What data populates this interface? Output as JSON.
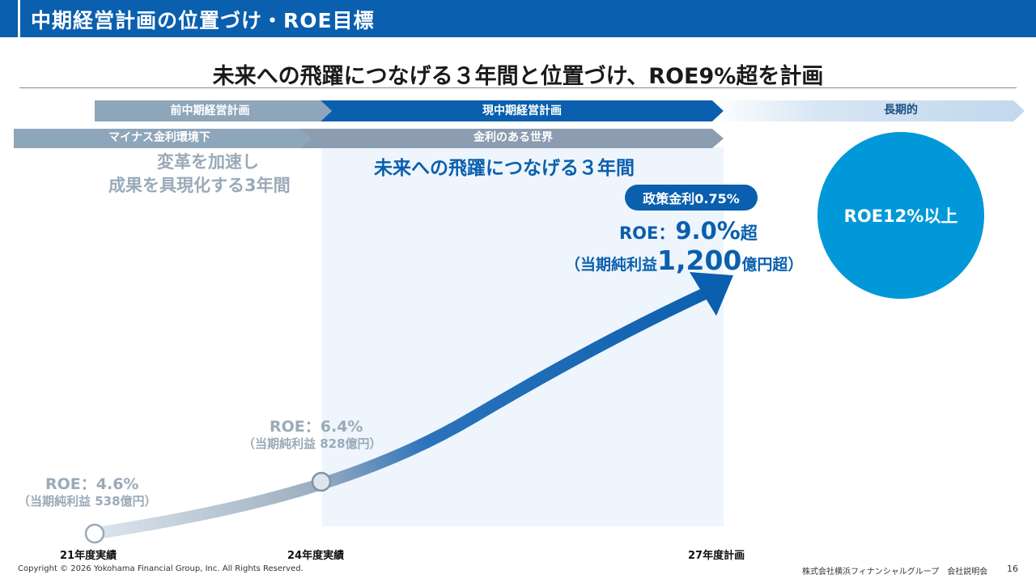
{
  "header": {
    "title": "中期経営計画の位置づけ・ROE目標"
  },
  "subtitle": "未来への飛躍につなげる３年間と位置づけ、ROE9%超を計画",
  "bands": {
    "prev_plan": "前中期経営計画",
    "current_plan": "現中期経営計画",
    "long_term": "長期的",
    "negative_rate": "マイナス金利環境下",
    "with_rate": "金利のある世界"
  },
  "phrases": {
    "prev_line1": "変革を加速し",
    "prev_line2": "成果を具現化する3年間",
    "current": "未来への飛躍につなげる３年間"
  },
  "points": {
    "fy21": {
      "roe": "ROE：4.6%",
      "profit": "（当期純利益 538億円）",
      "axis": "21年度実績"
    },
    "fy24": {
      "roe": "ROE：6.4%",
      "profit": "（当期純利益 828億円）",
      "axis": "24年度実績"
    },
    "fy27": {
      "policy_rate": "政策金利0.75%",
      "roe_prefix": "ROE：",
      "roe_value": "9.0%",
      "roe_suffix": "超",
      "profit_prefix": "（当期純利益",
      "profit_value": "1,200",
      "profit_suffix": "億円超）",
      "axis": "27年度計画"
    },
    "long_term_target": "ROE12%以上"
  },
  "footer": {
    "copyright": "Copyright © 2026 Yokohama Financial Group, Inc. All Rights Reserved.",
    "company": "株式会社横浜フィナンシャルグループ　会社説明会",
    "page": "16"
  },
  "colors": {
    "brand_blue": "#0a5fae",
    "light_blue": "#0098d8",
    "muted_gray": "#9aaab9"
  }
}
